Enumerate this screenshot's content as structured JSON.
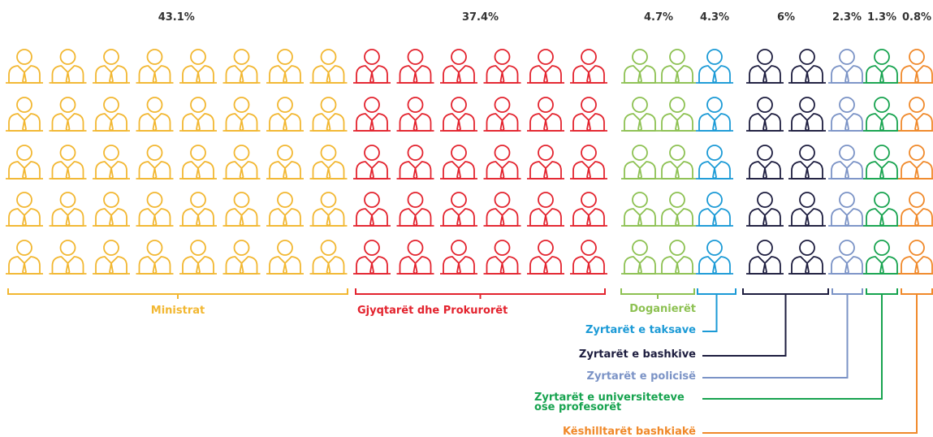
{
  "chart_data": {
    "type": "pictogram",
    "categories": [
      "Ministrat",
      "Gjyqtarët dhe Prokurorët",
      "Doganierët",
      "Zyrtarët e taksave",
      "Zyrtarët e bashkive",
      "Zyrtarët e policisë",
      "Zyrtarët e universiteteve ose profesorët",
      "Këshilltarët bashkiakë"
    ],
    "values": [
      43.1,
      37.4,
      4.7,
      4.3,
      6,
      2.3,
      1.3,
      0.8
    ],
    "value_labels": [
      "43.1%",
      "37.4%",
      "4.7%",
      "4.3%",
      "6%",
      "2.3%",
      "1.3%",
      "0.8%"
    ],
    "colors": [
      "#f2b731",
      "#e3232e",
      "#8dc152",
      "#1b9ad6",
      "#1d1d3f",
      "#7b93c6",
      "#17a34f",
      "#f0892a"
    ]
  }
}
